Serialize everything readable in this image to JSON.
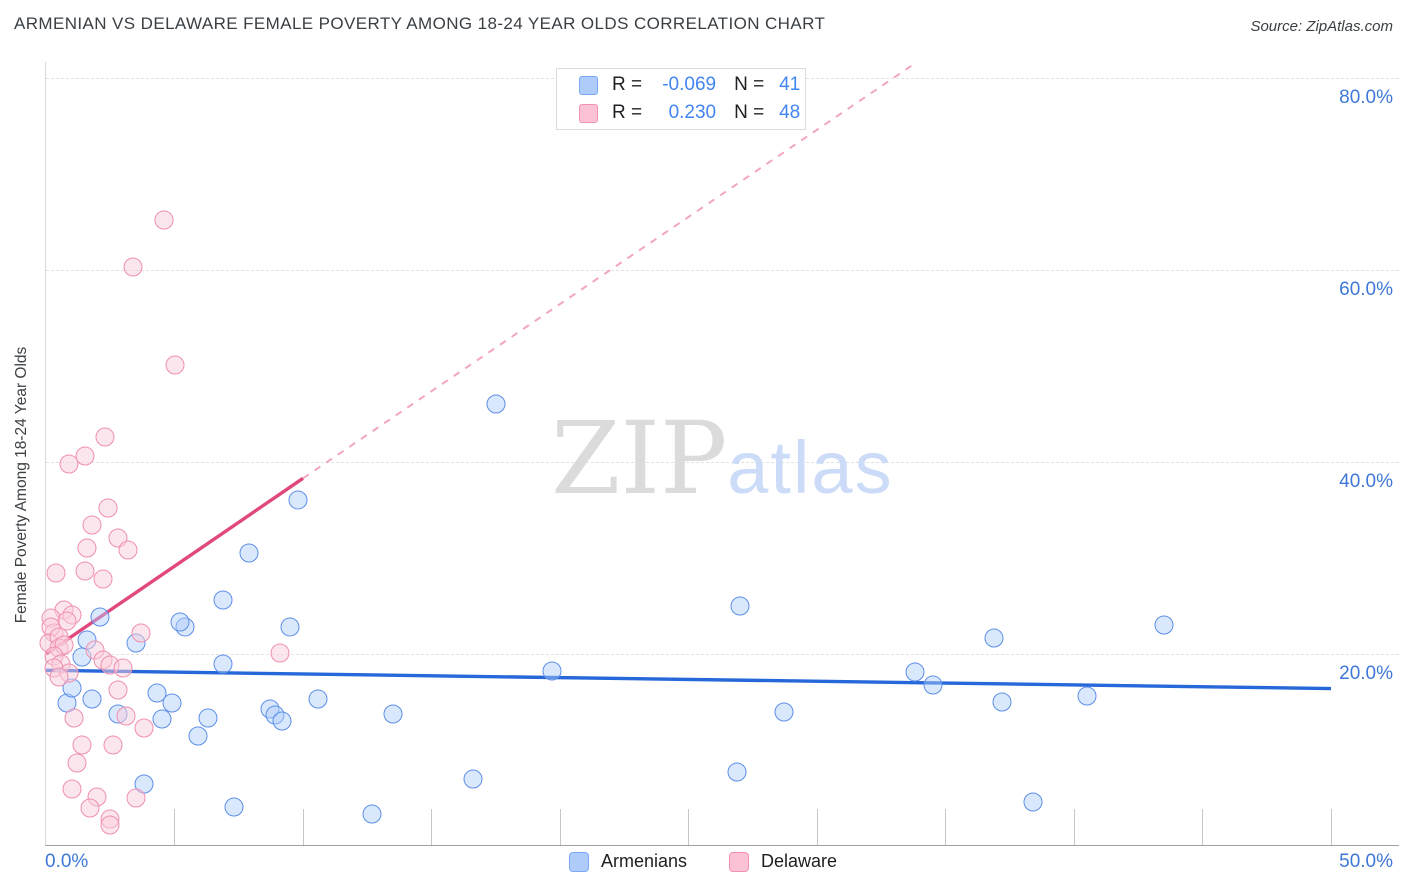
{
  "header": {
    "title": "ARMENIAN VS DELAWARE FEMALE POVERTY AMONG 18-24 YEAR OLDS CORRELATION CHART",
    "source": "Source: ZipAtlas.com"
  },
  "watermark": {
    "zip": "ZIP",
    "atlas": "atlas"
  },
  "y_axis": {
    "label": "Female Poverty Among 18-24 Year Olds",
    "tick_values": [
      80,
      60,
      40,
      20
    ],
    "tick_labels": [
      "80.0%",
      "60.0%",
      "40.0%",
      "20.0%"
    ]
  },
  "x_axis": {
    "min_label": "0.0%",
    "max_label": "50.0%",
    "min": 0,
    "max": 50,
    "minor_tick_step": 5
  },
  "legend_box": {
    "rows": [
      {
        "series": "armenians",
        "r_label": "R =",
        "r_value": "-0.069",
        "n_label": "N =",
        "n_value": "41"
      },
      {
        "series": "delaware",
        "r_label": "R =",
        "r_value": "0.230",
        "n_label": "N =",
        "n_value": "48"
      }
    ]
  },
  "bottom_legend": {
    "armenians": "Armenians",
    "delaware": "Delaware"
  },
  "colors": {
    "armenians_stroke": "#5d8fe8",
    "armenians_fill": "rgba(174,203,250,0.45)",
    "armenians_trend": "#2667d9",
    "delaware_stroke": "#ef8fb0",
    "delaware_fill": "rgba(249,205,220,0.50)",
    "delaware_trend": "#e0487e",
    "delaware_trend_dashed": "#f2a6c1",
    "axis_label_blue": "#3e78d8",
    "gridline": "#e2e2e2"
  },
  "chart_data": {
    "type": "scatter",
    "xlabel": "",
    "ylabel": "Female Poverty Among 18-24 Year Olds",
    "xlim": [
      0,
      50
    ],
    "ylim": [
      0,
      81.7
    ],
    "x_units": "percent Armenian population",
    "y_units": "percent female poverty among 18-24 year olds",
    "series": [
      {
        "key": "armenians",
        "name": "Armenians",
        "R": -0.069,
        "N": 41,
        "points": [
          [
            17.5,
            46.0
          ],
          [
            9.8,
            36.0
          ],
          [
            7.9,
            30.5
          ],
          [
            6.9,
            25.6
          ],
          [
            27.0,
            25.0
          ],
          [
            2.1,
            23.9
          ],
          [
            5.4,
            22.8
          ],
          [
            5.2,
            23.3
          ],
          [
            9.5,
            22.8
          ],
          [
            43.5,
            23.0
          ],
          [
            36.9,
            21.7
          ],
          [
            1.6,
            21.5
          ],
          [
            3.5,
            21.1
          ],
          [
            19.7,
            18.2
          ],
          [
            6.9,
            19.0
          ],
          [
            1.4,
            19.7
          ],
          [
            33.8,
            18.1
          ],
          [
            34.5,
            16.8
          ],
          [
            40.5,
            15.6
          ],
          [
            10.6,
            15.3
          ],
          [
            4.3,
            15.9
          ],
          [
            0.8,
            14.9
          ],
          [
            4.9,
            14.9
          ],
          [
            8.7,
            14.3
          ],
          [
            8.9,
            13.6
          ],
          [
            2.8,
            13.8
          ],
          [
            13.5,
            13.8
          ],
          [
            37.2,
            15.0
          ],
          [
            28.7,
            14.0
          ],
          [
            4.5,
            13.2
          ],
          [
            5.9,
            11.5
          ],
          [
            16.6,
            7.0
          ],
          [
            26.9,
            7.7
          ],
          [
            3.8,
            6.5
          ],
          [
            7.3,
            4.1
          ],
          [
            12.7,
            3.3
          ],
          [
            38.4,
            4.6
          ],
          [
            1.0,
            16.5
          ],
          [
            1.8,
            15.3
          ],
          [
            6.3,
            13.3
          ],
          [
            9.2,
            13.0
          ]
        ],
        "trend": {
          "x1": 0,
          "y1": 18.3,
          "x2": 50,
          "y2": 16.4,
          "style": "solid"
        }
      },
      {
        "key": "delaware",
        "name": "Delaware",
        "R": 0.23,
        "N": 48,
        "points": [
          [
            4.6,
            65.2
          ],
          [
            3.4,
            60.3
          ],
          [
            5.0,
            50.1
          ],
          [
            2.3,
            42.6
          ],
          [
            1.5,
            40.6
          ],
          [
            0.9,
            39.8
          ],
          [
            2.4,
            35.2
          ],
          [
            1.8,
            33.4
          ],
          [
            2.8,
            32.1
          ],
          [
            1.6,
            31.0
          ],
          [
            3.2,
            30.8
          ],
          [
            0.4,
            28.4
          ],
          [
            1.5,
            28.6
          ],
          [
            2.2,
            27.8
          ],
          [
            0.7,
            24.6
          ],
          [
            1.0,
            24.1
          ],
          [
            0.2,
            23.7
          ],
          [
            0.8,
            23.4
          ],
          [
            3.7,
            22.2
          ],
          [
            0.3,
            22.2
          ],
          [
            0.2,
            22.8
          ],
          [
            0.1,
            21.1
          ],
          [
            0.5,
            21.8
          ],
          [
            0.5,
            20.6
          ],
          [
            0.7,
            20.9
          ],
          [
            1.9,
            20.4
          ],
          [
            0.3,
            19.8
          ],
          [
            0.6,
            19.0
          ],
          [
            2.2,
            19.4
          ],
          [
            2.5,
            18.9
          ],
          [
            3.0,
            18.5
          ],
          [
            0.3,
            18.5
          ],
          [
            0.9,
            18.0
          ],
          [
            0.5,
            17.6
          ],
          [
            2.8,
            16.3
          ],
          [
            9.1,
            20.1
          ],
          [
            3.1,
            13.5
          ],
          [
            1.1,
            13.3
          ],
          [
            3.8,
            12.3
          ],
          [
            1.4,
            10.5
          ],
          [
            2.6,
            10.5
          ],
          [
            1.2,
            8.6
          ],
          [
            1.0,
            5.9
          ],
          [
            2.0,
            5.1
          ],
          [
            3.5,
            5.0
          ],
          [
            1.7,
            4.0
          ],
          [
            2.5,
            2.8
          ],
          [
            2.5,
            2.2
          ]
        ],
        "trend": {
          "x1": 0,
          "y1": 20.0,
          "x2": 10.0,
          "y2": 38.3,
          "style": "solid",
          "dashed_extension": {
            "x2": 33.8,
            "y2": 81.5
          }
        }
      }
    ]
  }
}
